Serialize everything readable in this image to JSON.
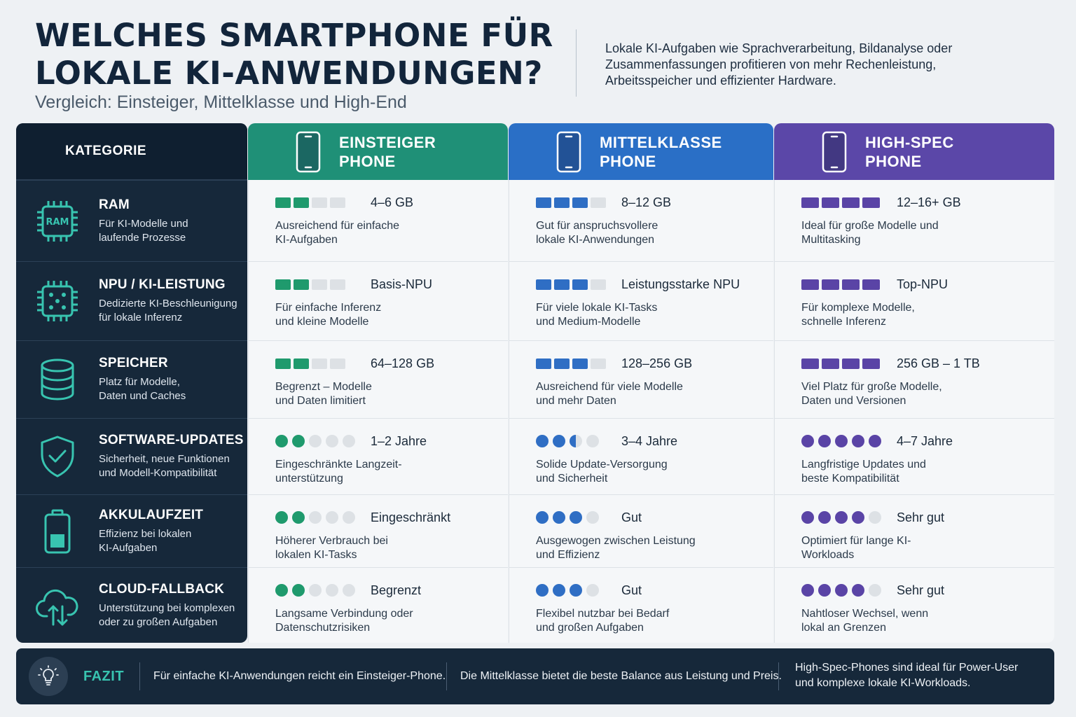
{
  "header": {
    "title_line1": "WELCHES SMARTPHONE FÜR",
    "title_line2": "LOKALE KI-ANWENDUNGEN?",
    "subtitle": "Vergleich: Einsteiger, Mittelklasse und High-End",
    "description": "Lokale KI-Aufgaben wie Sprachverarbeitung, Bildanalyse oder Zusammenfassungen profitieren von mehr Rechenleistung, Arbeitsspeicher und effizienter Hardware."
  },
  "category_header": "KATEGORIE",
  "categories": [
    {
      "name": "RAM",
      "desc_line1": "Für KI-Modelle und",
      "desc_line2": "laufende Prozesse",
      "icon": "ram-chip-icon"
    },
    {
      "name": "NPU / KI-LEISTUNG",
      "desc_line1": "Dedizierte KI-Beschleunigung",
      "desc_line2": "für lokale Inferenz",
      "icon": "npu-chip-icon"
    },
    {
      "name": "SPEICHER",
      "desc_line1": "Platz für Modelle,",
      "desc_line2": "Daten und Caches",
      "icon": "database-icon"
    },
    {
      "name": "SOFTWARE-UPDATES",
      "desc_line1": "Sicherheit, neue Funktionen",
      "desc_line2": "und Modell-Kompatibilität",
      "icon": "shield-check-icon"
    },
    {
      "name": "AKKULAUFZEIT",
      "desc_line1": "Effizienz bei lokalen",
      "desc_line2": "KI-Aufgaben",
      "icon": "battery-icon"
    },
    {
      "name": "CLOUD-FALLBACK",
      "desc_line1": "Unterstützung bei komplexen",
      "desc_line2": "oder zu großen Aufgaben",
      "icon": "cloud-sync-icon"
    }
  ],
  "tiers": [
    {
      "line1": "EINSTEIGER",
      "line2": "PHONE",
      "color": "#1f9077",
      "accent": "#1f9a6d",
      "cells": [
        {
          "value": "4–6 GB",
          "n1": "Ausreichend für einfache",
          "n2": "KI-Aufgaben",
          "filled": 2,
          "total": 4,
          "kind": "bar"
        },
        {
          "value": "Basis-NPU",
          "n1": "Für einfache Inferenz",
          "n2": "und kleine Modelle",
          "filled": 2,
          "total": 4,
          "kind": "bar"
        },
        {
          "value": "64–128 GB",
          "n1": "Begrenzt – Modelle",
          "n2": "und Daten limitiert",
          "filled": 2,
          "total": 4,
          "kind": "bar"
        },
        {
          "value": "1–2 Jahre",
          "n1": "Eingeschränkte Langzeit-",
          "n2": "unterstützung",
          "filled": 2,
          "total": 5,
          "kind": "dot"
        },
        {
          "value": "Eingeschränkt",
          "n1": "Höherer Verbrauch bei",
          "n2": "lokalen KI-Tasks",
          "filled": 2,
          "total": 5,
          "kind": "dot"
        },
        {
          "value": "Begrenzt",
          "n1": "Langsame Verbindung oder",
          "n2": "Datenschutzrisiken",
          "filled": 2,
          "total": 5,
          "kind": "dot"
        }
      ]
    },
    {
      "line1": "MITTELKLASSE",
      "line2": "PHONE",
      "color": "#2a6fc6",
      "accent": "#2f6ec4",
      "cells": [
        {
          "value": "8–12 GB",
          "n1": "Gut für anspruchsvollere",
          "n2": "lokale KI-Anwendungen",
          "filled": 3,
          "total": 4,
          "kind": "bar"
        },
        {
          "value": "Leistungsstarke NPU",
          "n1": "Für viele lokale KI-Tasks",
          "n2": "und Medium-Modelle",
          "filled": 3,
          "total": 4,
          "kind": "bar"
        },
        {
          "value": "128–256 GB",
          "n1": "Ausreichend für viele Modelle",
          "n2": "und mehr Daten",
          "filled": 3,
          "total": 4,
          "kind": "bar"
        },
        {
          "value": "3–4 Jahre",
          "n1": "Solide Update-Versorgung",
          "n2": "und Sicherheit",
          "filled": 2.5,
          "total": 4,
          "kind": "dot"
        },
        {
          "value": "Gut",
          "n1": "Ausgewogen zwischen Leistung",
          "n2": "und Effizienz",
          "filled": 3,
          "total": 4,
          "kind": "dot"
        },
        {
          "value": "Gut",
          "n1": "Flexibel nutzbar bei Bedarf",
          "n2": "und großen Aufgaben",
          "filled": 3,
          "total": 4,
          "kind": "dot"
        }
      ]
    },
    {
      "line1": "HIGH-SPEC",
      "line2": "PHONE",
      "color": "#5b47a8",
      "accent": "#5a44a6",
      "cells": [
        {
          "value": "12–16+ GB",
          "n1": "Ideal für große Modelle und",
          "n2": "Multitasking",
          "filled": 4,
          "total": 4,
          "kind": "bar"
        },
        {
          "value": "Top-NPU",
          "n1": "Für komplexe Modelle,",
          "n2": "schnelle Inferenz",
          "filled": 4,
          "total": 4,
          "kind": "bar"
        },
        {
          "value": "256 GB – 1 TB",
          "n1": "Viel Platz für große Modelle,",
          "n2": "Daten und Versionen",
          "filled": 4,
          "total": 4,
          "kind": "bar"
        },
        {
          "value": "4–7 Jahre",
          "n1": "Langfristige Updates und",
          "n2": "beste Kompatibilität",
          "filled": 5,
          "total": 5,
          "kind": "dot"
        },
        {
          "value": "Sehr gut",
          "n1": "Optimiert für lange KI-",
          "n2": "Workloads",
          "filled": 4,
          "total": 5,
          "kind": "dot"
        },
        {
          "value": "Sehr gut",
          "n1": "Nahtloser Wechsel, wenn",
          "n2": "lokal an Grenzen",
          "filled": 4,
          "total": 5,
          "kind": "dot"
        }
      ]
    }
  ],
  "fazit": {
    "label": "FAZIT",
    "t1": "Für einfache KI-Anwendungen reicht ein Einsteiger-Phone.",
    "t2": "Die Mittelklasse bietet die beste Balance aus Leistung und Preis.",
    "t3a": "High-Spec-Phones sind ideal für Power-User",
    "t3b": "und komplexe lokale KI-Workloads."
  },
  "colors": {
    "cat_bg": "#16283a",
    "icon_teal": "#38c4b0"
  }
}
